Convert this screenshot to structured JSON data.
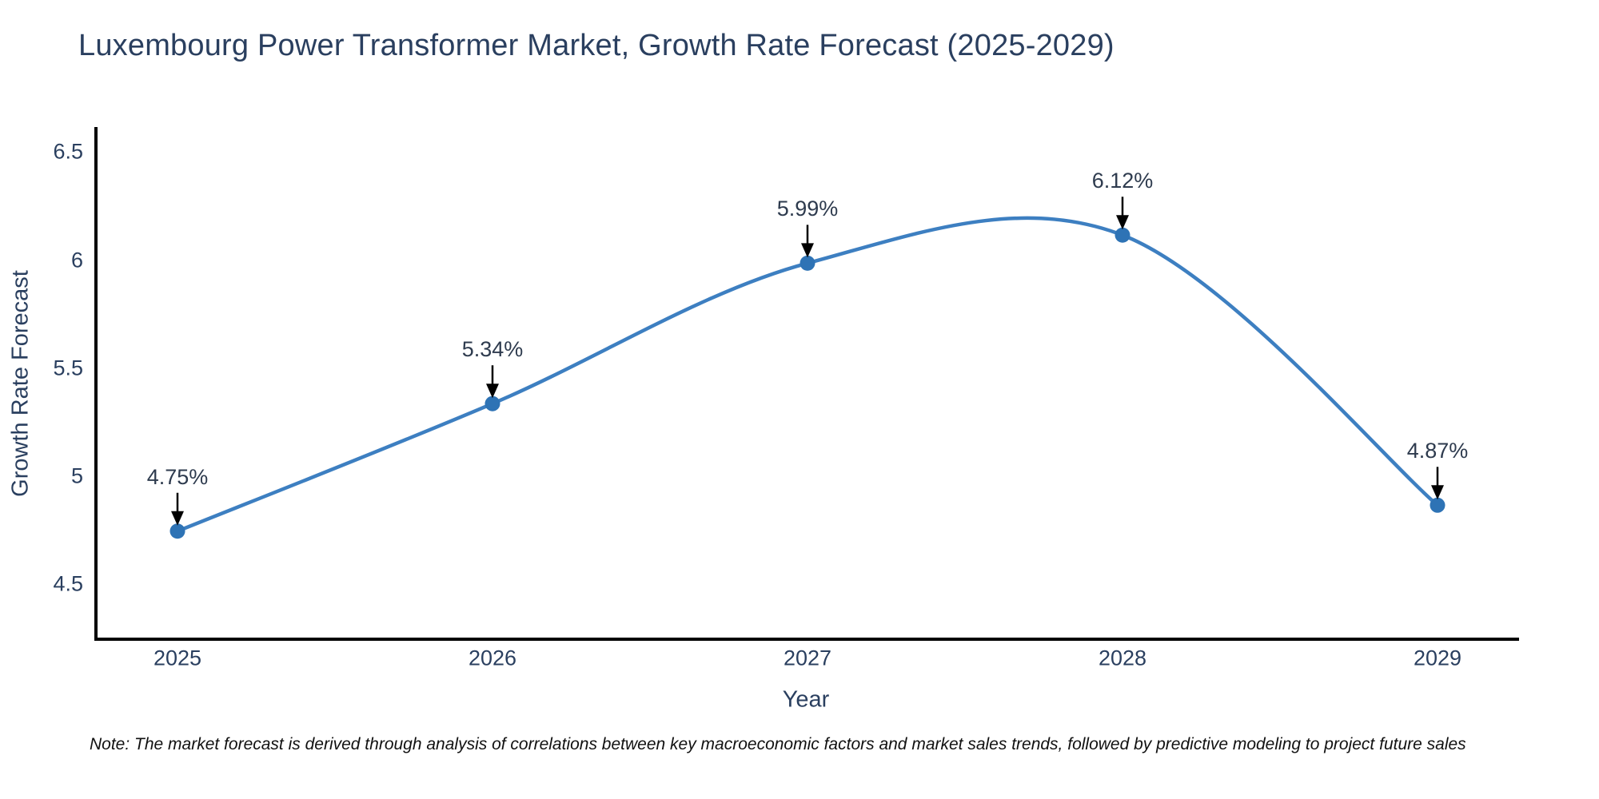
{
  "chart_data": {
    "type": "line",
    "title": "Luxembourg Power Transformer Market, Growth Rate Forecast (2025-2029)",
    "xlabel": "Year",
    "ylabel": "Growth Rate Forecast",
    "categories": [
      "2025",
      "2026",
      "2027",
      "2028",
      "2029"
    ],
    "values": [
      4.75,
      5.34,
      5.99,
      6.12,
      4.87
    ],
    "point_labels": [
      "4.75%",
      "5.34%",
      "5.99%",
      "6.12%",
      "4.87%"
    ],
    "yticks": [
      4.5,
      5,
      5.5,
      6,
      6.5
    ],
    "ylim": [
      4.25,
      6.62
    ],
    "grid": false,
    "legend": "none",
    "curve": "spline",
    "line_color": "#3d7fc1",
    "marker_color": "#2e73b5",
    "axis_color": "#000000",
    "text_color": "#2a3f5f",
    "annotation_color": "#2e3b4e",
    "arrow_color": "#000000",
    "note": "Note: The market forecast is derived through analysis of correlations between key macroeconomic factors and market sales trends, followed by predictive modeling to project future sales"
  }
}
